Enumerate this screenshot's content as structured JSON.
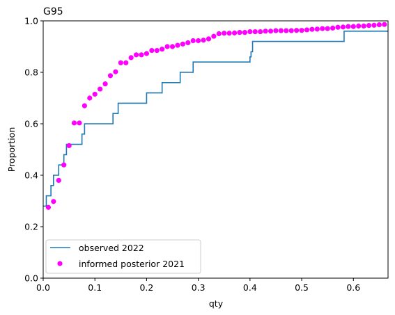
{
  "chart_data": {
    "type": "scatter",
    "title": "G95",
    "xlabel": "qty",
    "ylabel": "Proportion",
    "xlim": [
      0,
      0.667
    ],
    "ylim": [
      0,
      1.0
    ],
    "xticks": [
      "0.0",
      "0.1",
      "0.2",
      "0.3",
      "0.4",
      "0.5",
      "0.6"
    ],
    "xtick_values": [
      0,
      0.1,
      0.2,
      0.3,
      0.4,
      0.5,
      0.6
    ],
    "yticks": [
      "0.0",
      "0.2",
      "0.4",
      "0.6",
      "0.8",
      "1.0"
    ],
    "ytick_values": [
      0,
      0.2,
      0.4,
      0.6,
      0.8,
      1.0
    ],
    "grid": false,
    "legend_position": "lower-left",
    "series": [
      {
        "name": "observed 2022",
        "kind": "step",
        "color": "#1f77b4",
        "x": [
          0,
          0.006,
          0.006,
          0.015,
          0.015,
          0.02,
          0.02,
          0.03,
          0.03,
          0.04,
          0.04,
          0.045,
          0.045,
          0.05,
          0.05,
          0.075,
          0.075,
          0.08,
          0.08,
          0.1,
          0.1,
          0.135,
          0.135,
          0.145,
          0.145,
          0.2,
          0.2,
          0.23,
          0.23,
          0.265,
          0.265,
          0.29,
          0.29,
          0.4,
          0.4,
          0.402,
          0.402,
          0.405,
          0.405,
          0.582,
          0.582,
          0.667
        ],
        "y": [
          0.28,
          0.28,
          0.32,
          0.32,
          0.36,
          0.36,
          0.4,
          0.4,
          0.44,
          0.44,
          0.48,
          0.48,
          0.52,
          0.52,
          0.52,
          0.52,
          0.56,
          0.56,
          0.6,
          0.6,
          0.6,
          0.6,
          0.64,
          0.64,
          0.68,
          0.68,
          0.72,
          0.72,
          0.76,
          0.76,
          0.8,
          0.8,
          0.84,
          0.84,
          0.86,
          0.86,
          0.88,
          0.88,
          0.92,
          0.92,
          0.96,
          0.96
        ]
      },
      {
        "name": "informed posterior 2021",
        "kind": "scatter",
        "color": "#ff00ff",
        "x": [
          0.01,
          0.02,
          0.03,
          0.04,
          0.05,
          0.06,
          0.07,
          0.08,
          0.09,
          0.1,
          0.11,
          0.12,
          0.13,
          0.14,
          0.15,
          0.16,
          0.17,
          0.18,
          0.19,
          0.2,
          0.21,
          0.22,
          0.23,
          0.24,
          0.25,
          0.26,
          0.27,
          0.28,
          0.29,
          0.3,
          0.31,
          0.32,
          0.33,
          0.34,
          0.35,
          0.36,
          0.37,
          0.38,
          0.39,
          0.4,
          0.41,
          0.42,
          0.43,
          0.44,
          0.45,
          0.46,
          0.47,
          0.48,
          0.49,
          0.5,
          0.51,
          0.52,
          0.53,
          0.54,
          0.55,
          0.56,
          0.57,
          0.58,
          0.59,
          0.6,
          0.61,
          0.62,
          0.63,
          0.64,
          0.65,
          0.66
        ],
        "y": [
          0.275,
          0.298,
          0.38,
          0.44,
          0.515,
          0.603,
          0.603,
          0.67,
          0.7,
          0.715,
          0.735,
          0.755,
          0.787,
          0.802,
          0.837,
          0.837,
          0.857,
          0.868,
          0.868,
          0.873,
          0.885,
          0.885,
          0.89,
          0.9,
          0.9,
          0.905,
          0.91,
          0.915,
          0.923,
          0.923,
          0.925,
          0.93,
          0.94,
          0.95,
          0.952,
          0.952,
          0.953,
          0.955,
          0.955,
          0.958,
          0.958,
          0.958,
          0.96,
          0.96,
          0.962,
          0.962,
          0.962,
          0.962,
          0.963,
          0.963,
          0.965,
          0.967,
          0.968,
          0.97,
          0.97,
          0.972,
          0.975,
          0.976,
          0.978,
          0.978,
          0.98,
          0.98,
          0.982,
          0.983,
          0.985,
          0.986
        ]
      }
    ]
  }
}
